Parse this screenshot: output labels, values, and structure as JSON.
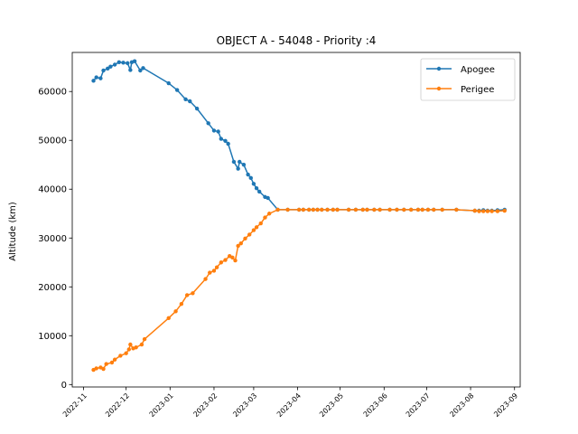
{
  "chart_data": {
    "type": "line",
    "title": "OBJECT A - 54048 - Priority :4",
    "xlabel": "",
    "ylabel": "Altitude (km)",
    "x_tick_labels": [
      "2022-11",
      "2022-12",
      "2023-01",
      "2023-02",
      "2023-03",
      "2023-04",
      "2023-05",
      "2023-06",
      "2023-07",
      "2023-08",
      "2023-09"
    ],
    "x_ticks": [
      "2022-11-01",
      "2022-12-01",
      "2023-01-01",
      "2023-02-01",
      "2023-03-01",
      "2023-04-01",
      "2023-05-01",
      "2023-06-01",
      "2023-07-01",
      "2023-08-01",
      "2023-09-01"
    ],
    "y_ticks": [
      0,
      10000,
      20000,
      30000,
      40000,
      50000,
      60000
    ],
    "xlim": [
      "2022-10-24",
      "2023-09-05"
    ],
    "ylim": [
      -500,
      68000
    ],
    "grid": false,
    "legend_position": "top-right",
    "series": [
      {
        "name": "Apogee",
        "color": "#1f77b4",
        "points": [
          [
            "2022-11-08",
            62200
          ],
          [
            "2022-11-10",
            62900
          ],
          [
            "2022-11-13",
            62700
          ],
          [
            "2022-11-15",
            64300
          ],
          [
            "2022-11-18",
            64700
          ],
          [
            "2022-11-20",
            65100
          ],
          [
            "2022-11-23",
            65500
          ],
          [
            "2022-11-26",
            66000
          ],
          [
            "2022-11-29",
            65900
          ],
          [
            "2022-12-02",
            65800
          ],
          [
            "2022-12-04",
            64400
          ],
          [
            "2022-12-05",
            66000
          ],
          [
            "2022-12-07",
            66200
          ],
          [
            "2022-12-11",
            64300
          ],
          [
            "2022-12-13",
            64800
          ],
          [
            "2022-12-31",
            61700
          ],
          [
            "2023-01-06",
            60300
          ],
          [
            "2023-01-12",
            58400
          ],
          [
            "2023-01-15",
            58000
          ],
          [
            "2023-01-20",
            56500
          ],
          [
            "2023-01-28",
            53500
          ],
          [
            "2023-02-01",
            52000
          ],
          [
            "2023-02-04",
            51800
          ],
          [
            "2023-02-06",
            50300
          ],
          [
            "2023-02-09",
            49900
          ],
          [
            "2023-02-11",
            49300
          ],
          [
            "2023-02-15",
            45600
          ],
          [
            "2023-02-18",
            44200
          ],
          [
            "2023-02-19",
            45600
          ],
          [
            "2023-02-22",
            45000
          ],
          [
            "2023-02-25",
            43000
          ],
          [
            "2023-02-27",
            42300
          ],
          [
            "2023-03-01",
            41100
          ],
          [
            "2023-03-03",
            40200
          ],
          [
            "2023-03-05",
            39500
          ],
          [
            "2023-03-09",
            38400
          ],
          [
            "2023-03-11",
            38200
          ],
          [
            "2023-03-18",
            35800
          ],
          [
            "2023-03-25",
            35800
          ],
          [
            "2023-04-02",
            35800
          ],
          [
            "2023-04-05",
            35800
          ],
          [
            "2023-04-09",
            35800
          ],
          [
            "2023-04-12",
            35800
          ],
          [
            "2023-04-15",
            35800
          ],
          [
            "2023-04-18",
            35800
          ],
          [
            "2023-04-22",
            35800
          ],
          [
            "2023-04-26",
            35800
          ],
          [
            "2023-04-29",
            35800
          ],
          [
            "2023-05-07",
            35800
          ],
          [
            "2023-05-12",
            35800
          ],
          [
            "2023-05-17",
            35800
          ],
          [
            "2023-05-20",
            35800
          ],
          [
            "2023-05-25",
            35800
          ],
          [
            "2023-05-29",
            35800
          ],
          [
            "2023-06-05",
            35800
          ],
          [
            "2023-06-10",
            35800
          ],
          [
            "2023-06-15",
            35800
          ],
          [
            "2023-06-20",
            35800
          ],
          [
            "2023-06-25",
            35800
          ],
          [
            "2023-06-28",
            35800
          ],
          [
            "2023-07-02",
            35800
          ],
          [
            "2023-07-06",
            35800
          ],
          [
            "2023-07-12",
            35800
          ],
          [
            "2023-07-22",
            35800
          ],
          [
            "2023-08-04",
            35600
          ],
          [
            "2023-08-07",
            35600
          ],
          [
            "2023-08-10",
            35700
          ],
          [
            "2023-08-13",
            35600
          ],
          [
            "2023-08-16",
            35600
          ],
          [
            "2023-08-20",
            35700
          ],
          [
            "2023-08-25",
            35800
          ]
        ]
      },
      {
        "name": "Perigee",
        "color": "#ff7f0e",
        "points": [
          [
            "2022-11-08",
            3000
          ],
          [
            "2022-11-10",
            3300
          ],
          [
            "2022-11-13",
            3500
          ],
          [
            "2022-11-15",
            3200
          ],
          [
            "2022-11-17",
            4200
          ],
          [
            "2022-11-21",
            4500
          ],
          [
            "2022-11-23",
            5100
          ],
          [
            "2022-11-27",
            5900
          ],
          [
            "2022-12-01",
            6400
          ],
          [
            "2022-12-03",
            7200
          ],
          [
            "2022-12-04",
            8200
          ],
          [
            "2022-12-06",
            7400
          ],
          [
            "2022-12-08",
            7600
          ],
          [
            "2022-12-12",
            8200
          ],
          [
            "2022-12-14",
            9300
          ],
          [
            "2022-12-31",
            13600
          ],
          [
            "2023-01-05",
            15000
          ],
          [
            "2023-01-09",
            16500
          ],
          [
            "2023-01-13",
            18300
          ],
          [
            "2023-01-17",
            18700
          ],
          [
            "2023-01-26",
            21600
          ],
          [
            "2023-01-29",
            22900
          ],
          [
            "2023-02-01",
            23300
          ],
          [
            "2023-02-03",
            24000
          ],
          [
            "2023-02-06",
            25000
          ],
          [
            "2023-02-09",
            25500
          ],
          [
            "2023-02-12",
            26300
          ],
          [
            "2023-02-14",
            26000
          ],
          [
            "2023-02-16",
            25400
          ],
          [
            "2023-02-18",
            28400
          ],
          [
            "2023-02-20",
            28900
          ],
          [
            "2023-02-23",
            29900
          ],
          [
            "2023-02-26",
            30700
          ],
          [
            "2023-03-01",
            31600
          ],
          [
            "2023-03-03",
            32200
          ],
          [
            "2023-03-06",
            33000
          ],
          [
            "2023-03-09",
            34200
          ],
          [
            "2023-03-12",
            35000
          ],
          [
            "2023-03-18",
            35800
          ],
          [
            "2023-03-25",
            35800
          ],
          [
            "2023-04-02",
            35800
          ],
          [
            "2023-04-05",
            35800
          ],
          [
            "2023-04-09",
            35800
          ],
          [
            "2023-04-12",
            35800
          ],
          [
            "2023-04-15",
            35800
          ],
          [
            "2023-04-18",
            35800
          ],
          [
            "2023-04-22",
            35800
          ],
          [
            "2023-04-26",
            35800
          ],
          [
            "2023-04-29",
            35800
          ],
          [
            "2023-05-07",
            35800
          ],
          [
            "2023-05-12",
            35800
          ],
          [
            "2023-05-17",
            35800
          ],
          [
            "2023-05-20",
            35800
          ],
          [
            "2023-05-25",
            35800
          ],
          [
            "2023-05-29",
            35800
          ],
          [
            "2023-06-05",
            35800
          ],
          [
            "2023-06-10",
            35800
          ],
          [
            "2023-06-15",
            35800
          ],
          [
            "2023-06-20",
            35800
          ],
          [
            "2023-06-25",
            35800
          ],
          [
            "2023-06-28",
            35800
          ],
          [
            "2023-07-02",
            35800
          ],
          [
            "2023-07-06",
            35800
          ],
          [
            "2023-07-12",
            35800
          ],
          [
            "2023-07-22",
            35800
          ],
          [
            "2023-08-04",
            35600
          ],
          [
            "2023-08-07",
            35500
          ],
          [
            "2023-08-10",
            35500
          ],
          [
            "2023-08-13",
            35500
          ],
          [
            "2023-08-16",
            35500
          ],
          [
            "2023-08-20",
            35500
          ],
          [
            "2023-08-25",
            35600
          ]
        ]
      }
    ]
  }
}
